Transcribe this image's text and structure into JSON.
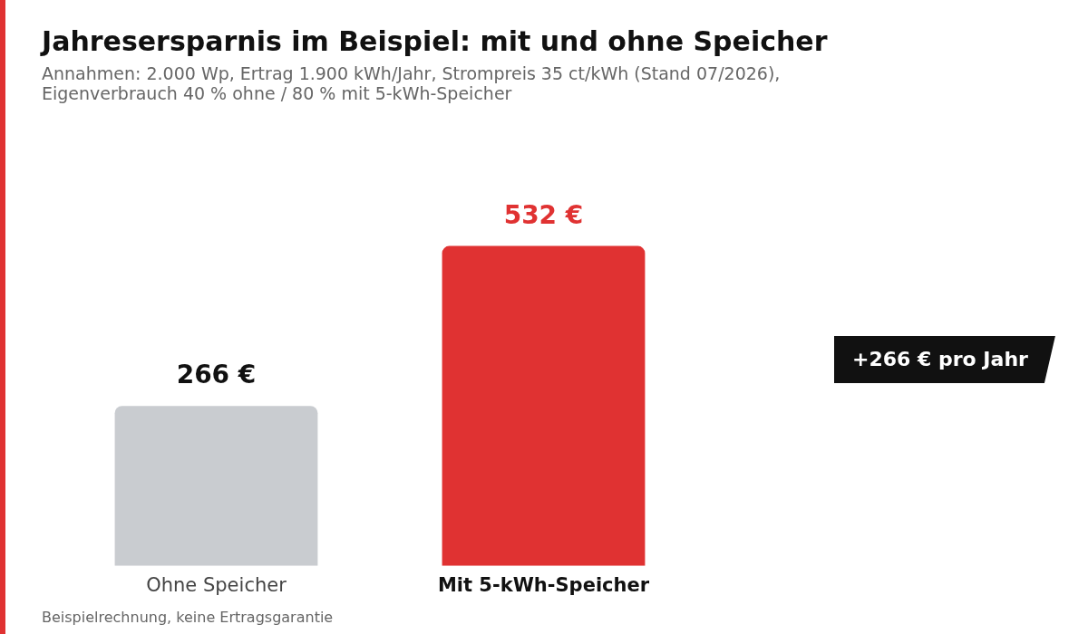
{
  "chart_data": {
    "type": "bar",
    "title": "Jahresersparnis im Beispiel: mit und ohne Speicher",
    "subtitle": "Annahmen: 2.000 Wp, Ertrag 1.900 kWh/Jahr, Strompreis 35 ct/kWh (Stand 07/2026), Eigenverbrauch 40 % ohne / 80 % mit 5-kWh-Speicher",
    "categories": [
      "Ohne Speicher",
      "Mit 5-kWh-Speicher"
    ],
    "values": [
      266,
      532
    ],
    "colors": [
      "#c9ccd0",
      "#e03232"
    ],
    "value_labels": [
      "266 €",
      "532 €"
    ],
    "annotations": [
      "+266 € pro Jahr",
      "Beispielrechnung, keine Ertragsgarantie"
    ],
    "grid": false,
    "legend": false
  }
}
